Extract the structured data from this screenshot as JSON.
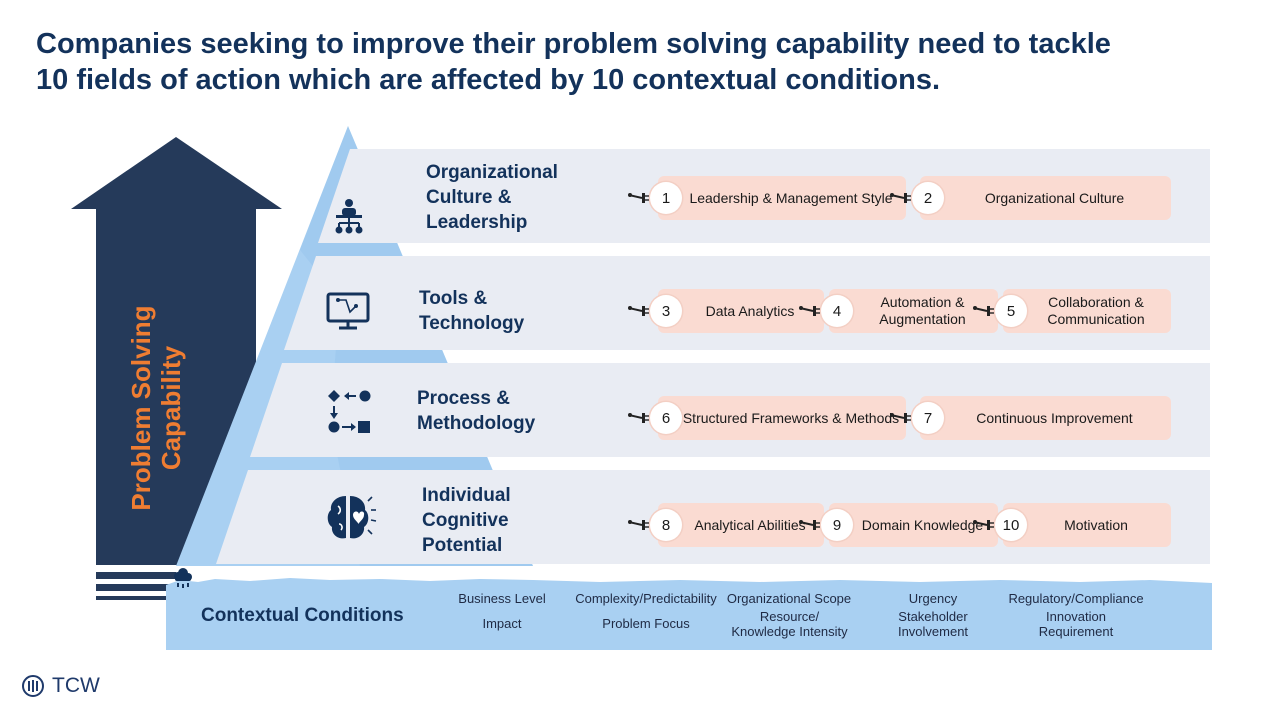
{
  "title": {
    "line1": "Companies seeking to improve their problem solving capability need to tackle",
    "line2": "10 fields of action which are affected by 10 contextual conditions."
  },
  "arrow": {
    "line1": "Problem Solving",
    "line2": "Capability"
  },
  "layers": [
    {
      "title_lines": [
        "Organizational",
        "Culture &",
        "Leadership"
      ],
      "icon": "leadership-hierarchy-icon"
    },
    {
      "title_lines": [
        "Tools &",
        "Technology"
      ],
      "icon": "computer-monitor-icon"
    },
    {
      "title_lines": [
        "Process &",
        "Methodology"
      ],
      "icon": "process-flow-icon"
    },
    {
      "title_lines": [
        "Individual",
        "Cognitive",
        "Potential"
      ],
      "icon": "brain-icon"
    }
  ],
  "fields": [
    {
      "num": "1",
      "label": "Leadership & Management Style"
    },
    {
      "num": "2",
      "label": "Organizational Culture"
    },
    {
      "num": "3",
      "label": "Data Analytics"
    },
    {
      "num": "4",
      "label": "Automation & Augmentation"
    },
    {
      "num": "5",
      "label": "Collaboration & Communication"
    },
    {
      "num": "6",
      "label": "Structured Frameworks & Methods"
    },
    {
      "num": "7",
      "label": "Continuous Improvement"
    },
    {
      "num": "8",
      "label": "Analytical Abilities"
    },
    {
      "num": "9",
      "label": "Domain Knowledge"
    },
    {
      "num": "10",
      "label": "Motivation"
    }
  ],
  "contextual": {
    "label": "Contextual Conditions",
    "icon": "rain-cloud-icon",
    "conditions": [
      "Business Level",
      "Impact",
      "Complexity/Predictability",
      "Problem Focus",
      "Organizational Scope",
      "Resource/ Knowledge Intensity",
      "Urgency",
      "Stakeholder Involvement",
      "Regulatory/Compliance",
      "Innovation Requirement"
    ]
  },
  "logo": {
    "text": "TCW",
    "icon": "tcw-logo-icon"
  },
  "colors": {
    "navy": "#13325b",
    "arrow": "#253a5a",
    "accent_orange": "#ef7d32",
    "layer_bg": "#e9ecf3",
    "field_bg": "#fadbd2",
    "water": "#a9d0f2"
  }
}
